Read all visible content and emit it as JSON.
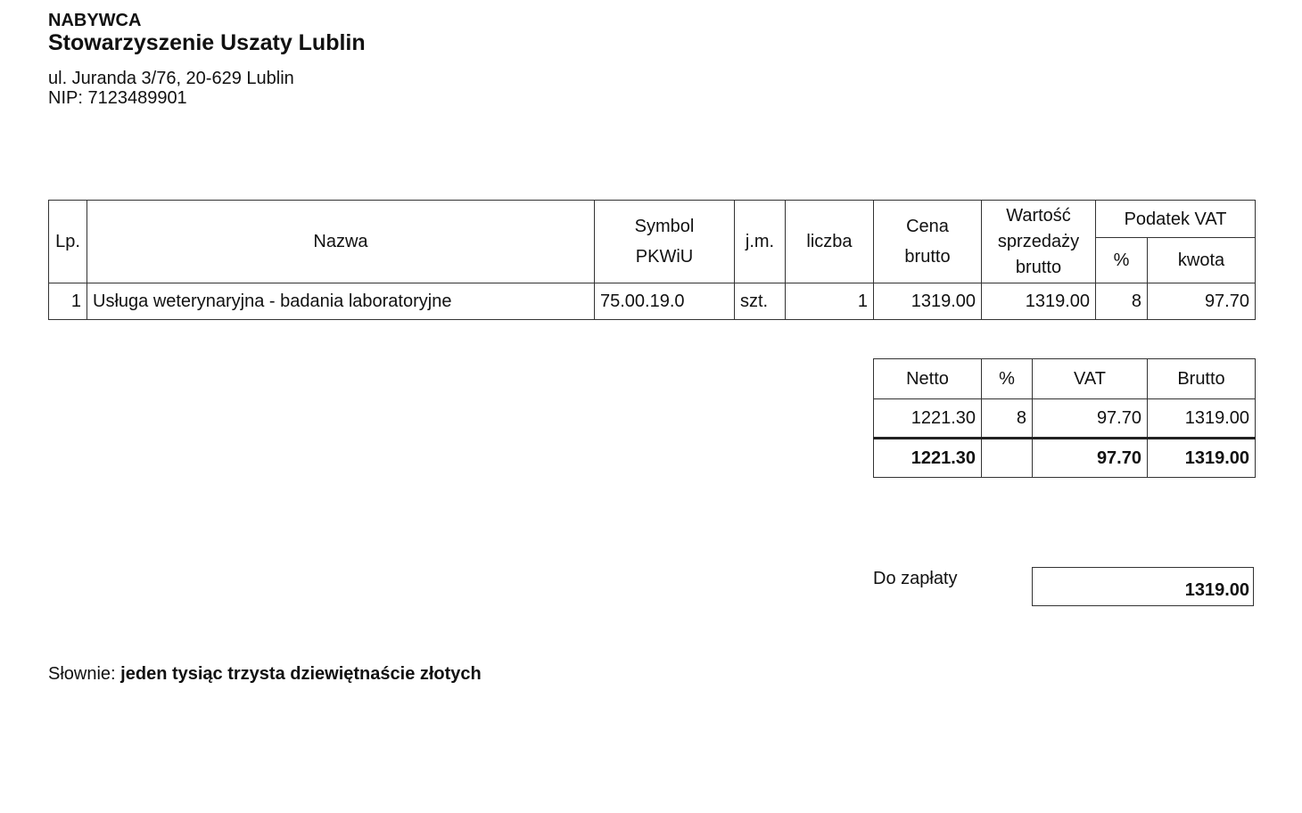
{
  "buyer": {
    "label": "NABYWCA",
    "name": "Stowarzyszenie Uszaty Lublin",
    "address": "ul. Juranda 3/76, 20-629 Lublin",
    "nip": "NIP: 7123489901"
  },
  "items_table": {
    "headers": {
      "lp": "Lp.",
      "name": "Nazwa",
      "symbol_1": "Symbol",
      "symbol_2": "PKWiU",
      "unit": "j.m.",
      "qty": "liczba",
      "price_1": "Cena",
      "price_2": "brutto",
      "value_1": "Wartość",
      "value_2": "sprzedaży",
      "value_3": "brutto",
      "vat": "Podatek VAT",
      "vat_pct": "%",
      "vat_amount": "kwota"
    },
    "rows": [
      {
        "lp": "1",
        "name": "Usługa weterynaryjna - badania laboratoryjne",
        "symbol": "75.00.19.0",
        "unit": "szt.",
        "qty": "1",
        "price": "1319.00",
        "value": "1319.00",
        "vat_pct": "8",
        "vat_amount": "97.70"
      }
    ]
  },
  "summary_table": {
    "headers": [
      "Netto",
      "%",
      "VAT",
      "Brutto"
    ],
    "rows": [
      [
        "1221.30",
        "8",
        "97.70",
        "1319.00"
      ]
    ],
    "total": [
      "1221.30",
      "",
      "97.70",
      "1319.00"
    ]
  },
  "payment": {
    "label": "Do zapłaty",
    "amount": "1319.00"
  },
  "in_words": {
    "label": "Słownie:",
    "value": "jeden tysiąc trzysta dziewiętnaście złotych"
  }
}
